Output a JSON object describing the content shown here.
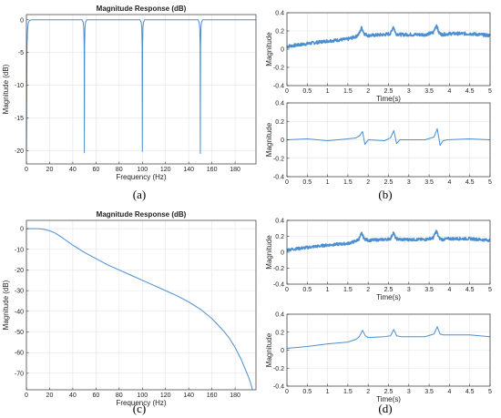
{
  "chart_data": [
    {
      "id": "a",
      "type": "line",
      "title": "Magnitude Response (dB)",
      "xlabel": "Frequency (Hz)",
      "ylabel": "Magnitude (dB)",
      "caption": "(a)",
      "xlim": [
        0,
        198
      ],
      "ylim": [
        -22,
        0.8
      ],
      "xticks": [
        0,
        20,
        40,
        60,
        80,
        100,
        120,
        140,
        160,
        180
      ],
      "yticks": [
        0,
        -5,
        -10,
        -15,
        -20
      ],
      "grid": true,
      "color": "#4a8fd1",
      "series": [
        {
          "x": [
            0,
            0.5,
            1,
            1.5,
            2,
            2.5,
            3,
            3.5,
            4,
            5,
            48,
            49,
            49.5,
            49.8,
            50,
            50.2,
            50.5,
            51,
            52,
            98,
            99,
            99.5,
            99.8,
            100,
            100.2,
            100.5,
            101,
            102,
            148,
            149,
            149.5,
            149.8,
            150,
            150.2,
            150.5,
            151,
            152,
            198
          ],
          "y": [
            -20,
            -4,
            -1.5,
            -0.6,
            -0.3,
            -0.15,
            -0.08,
            -0.04,
            -0.02,
            0,
            0,
            -0.4,
            -1.2,
            -4,
            -20.3,
            -4,
            -1.2,
            -0.4,
            0,
            0,
            -0.4,
            -1.2,
            -4,
            -20.1,
            -4,
            -1.2,
            -0.4,
            0,
            0,
            -0.4,
            -1.2,
            -4,
            -20.4,
            -4,
            -1.2,
            -0.4,
            0,
            0
          ]
        }
      ]
    },
    {
      "id": "b-top",
      "type": "line",
      "ylabel": "Magnitude",
      "xlabel": "Time(s)",
      "xlim": [
        0,
        5
      ],
      "ylim": [
        -0.4,
        0.4
      ],
      "xticks": [
        0,
        0.5,
        1,
        1.5,
        2,
        2.5,
        3,
        3.5,
        4,
        4.5,
        5
      ],
      "yticks": [
        0.4,
        0.2,
        0,
        -0.2,
        -0.4
      ],
      "grid": true,
      "noisy": true,
      "series": [
        {
          "x": [
            0,
            0.5,
            1,
            1.5,
            1.7,
            1.78,
            1.84,
            1.9,
            2.0,
            2.4,
            2.55,
            2.62,
            2.68,
            2.8,
            3.4,
            3.6,
            3.68,
            3.74,
            3.82,
            4.0,
            4.5,
            5.0
          ],
          "y": [
            0.03,
            0.06,
            0.09,
            0.11,
            0.14,
            0.17,
            0.24,
            0.17,
            0.15,
            0.16,
            0.17,
            0.25,
            0.17,
            0.16,
            0.16,
            0.18,
            0.27,
            0.18,
            0.16,
            0.17,
            0.17,
            0.15
          ]
        }
      ]
    },
    {
      "id": "b-bottom",
      "type": "line",
      "ylabel": "Magnitude",
      "xlabel": "Time(s)",
      "caption": "(b)",
      "xlim": [
        0,
        5
      ],
      "ylim": [
        -0.4,
        0.4
      ],
      "xticks": [
        0,
        0.5,
        1,
        1.5,
        2,
        2.5,
        3,
        3.5,
        4,
        4.5,
        5
      ],
      "yticks": [
        0.4,
        0.2,
        0,
        -0.2,
        -0.4
      ],
      "grid": true,
      "noisy": false,
      "series": [
        {
          "x": [
            0,
            0.5,
            1,
            1.5,
            1.7,
            1.8,
            1.86,
            1.92,
            2.0,
            2.4,
            2.55,
            2.63,
            2.7,
            2.78,
            3.4,
            3.62,
            3.7,
            3.77,
            3.84,
            3.95,
            4.5,
            5.0
          ],
          "y": [
            0,
            0.01,
            -0.01,
            0.01,
            0.02,
            0.05,
            0.09,
            -0.05,
            0.0,
            -0.01,
            0.02,
            0.1,
            -0.04,
            0.0,
            0.0,
            0.03,
            0.12,
            -0.06,
            -0.01,
            0.0,
            0.01,
            0.0
          ]
        }
      ]
    },
    {
      "id": "c",
      "type": "line",
      "title": "Magnitude Response (dB)",
      "xlabel": "Frequency (Hz)",
      "ylabel": "Magnitude (dB)",
      "caption": "(c)",
      "xlim": [
        0,
        198
      ],
      "ylim": [
        -78,
        4
      ],
      "xticks": [
        0,
        20,
        40,
        60,
        80,
        100,
        120,
        140,
        160,
        180
      ],
      "yticks": [
        0,
        -10,
        -20,
        -30,
        -40,
        -50,
        -60,
        -70
      ],
      "grid": true,
      "series": [
        {
          "x": [
            0,
            10,
            15,
            20,
            25,
            30,
            40,
            50,
            60,
            70,
            80,
            90,
            100,
            110,
            120,
            130,
            140,
            150,
            160,
            170,
            175,
            180,
            185,
            188,
            191,
            193,
            195
          ],
          "y": [
            0,
            0,
            -0.3,
            -1,
            -2.2,
            -4,
            -8,
            -11.5,
            -14.5,
            -17.5,
            -20,
            -22.5,
            -25,
            -27.5,
            -30,
            -32.5,
            -35.5,
            -39,
            -43.5,
            -49.5,
            -53,
            -57.5,
            -63,
            -67,
            -71,
            -74,
            -78
          ]
        }
      ]
    },
    {
      "id": "d-top",
      "type": "line",
      "ylabel": "Magnitude",
      "xlabel": "Time(s)",
      "xlim": [
        0,
        5
      ],
      "ylim": [
        -0.4,
        0.4
      ],
      "xticks": [
        0,
        0.5,
        1,
        1.5,
        2,
        2.5,
        3,
        3.5,
        4,
        4.5,
        5
      ],
      "yticks": [
        0.4,
        0.2,
        0,
        -0.2,
        -0.4
      ],
      "grid": true,
      "noisy": true,
      "series": [
        {
          "x": [
            0,
            0.5,
            1,
            1.5,
            1.7,
            1.78,
            1.84,
            1.9,
            2.0,
            2.4,
            2.55,
            2.62,
            2.68,
            2.8,
            3.4,
            3.6,
            3.68,
            3.74,
            3.82,
            4.0,
            4.5,
            5.0
          ],
          "y": [
            0.03,
            0.06,
            0.09,
            0.11,
            0.14,
            0.17,
            0.24,
            0.17,
            0.15,
            0.16,
            0.17,
            0.25,
            0.17,
            0.16,
            0.16,
            0.18,
            0.27,
            0.18,
            0.16,
            0.17,
            0.17,
            0.15
          ]
        }
      ]
    },
    {
      "id": "d-bottom",
      "type": "line",
      "ylabel": "Magnitude",
      "xlabel": "Time(s)",
      "caption": "(d)",
      "xlim": [
        0,
        5
      ],
      "ylim": [
        -0.4,
        0.4
      ],
      "xticks": [
        0,
        0.5,
        1,
        1.5,
        2,
        2.5,
        3,
        3.5,
        4,
        4.5,
        5
      ],
      "yticks": [
        0.4,
        0.2,
        0,
        -0.2,
        -0.4
      ],
      "grid": true,
      "noisy": false,
      "series": [
        {
          "x": [
            0,
            0.5,
            1,
            1.5,
            1.7,
            1.78,
            1.86,
            1.93,
            2.0,
            2.4,
            2.55,
            2.63,
            2.7,
            2.8,
            3.4,
            3.62,
            3.7,
            3.77,
            3.85,
            4.0,
            4.5,
            5.0
          ],
          "y": [
            0.02,
            0.04,
            0.07,
            0.09,
            0.12,
            0.15,
            0.22,
            0.16,
            0.14,
            0.15,
            0.16,
            0.23,
            0.16,
            0.15,
            0.15,
            0.18,
            0.26,
            0.18,
            0.17,
            0.17,
            0.17,
            0.15
          ]
        }
      ]
    }
  ]
}
